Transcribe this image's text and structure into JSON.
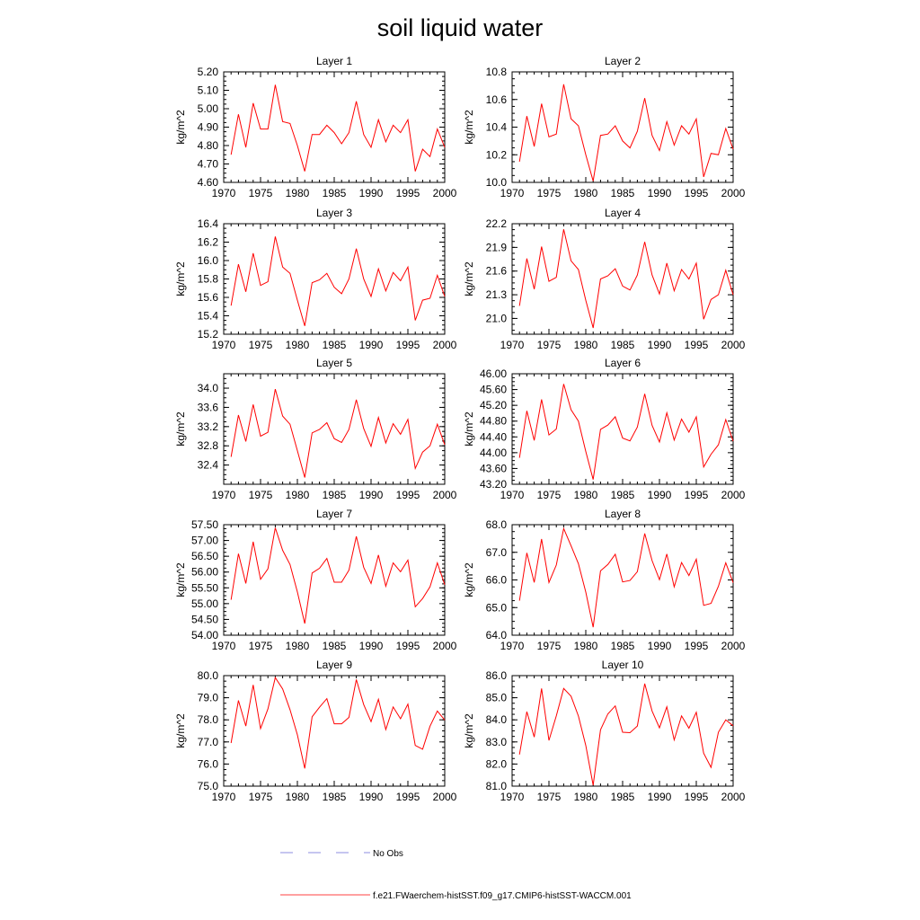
{
  "title": "soil liquid water",
  "chart_data": [
    {
      "type": "line",
      "title": "Layer 1",
      "ylabel": "kg/m^2",
      "xlim": [
        1970,
        2000
      ],
      "ylim": [
        4.6,
        5.2
      ],
      "xticks": [
        1970,
        1975,
        1980,
        1985,
        1990,
        1995,
        2000
      ],
      "yticks": [
        "4.60",
        "4.70",
        "4.80",
        "4.90",
        "5.00",
        "5.10",
        "5.20"
      ],
      "series": [
        {
          "color": "#ff0000",
          "x": [
            1971,
            1972,
            1973,
            1974,
            1975,
            1976,
            1977,
            1978,
            1979,
            1980,
            1981,
            1982,
            1983,
            1984,
            1985,
            1986,
            1987,
            1988,
            1989,
            1990,
            1991,
            1992,
            1993,
            1994,
            1995,
            1996,
            1997,
            1998,
            1999,
            2000
          ],
          "values": [
            4.75,
            4.97,
            4.79,
            5.03,
            4.89,
            4.89,
            5.13,
            4.93,
            4.92,
            4.8,
            4.66,
            4.86,
            4.86,
            4.91,
            4.87,
            4.81,
            4.87,
            5.04,
            4.86,
            4.79,
            4.94,
            4.82,
            4.91,
            4.87,
            4.94,
            4.66,
            4.78,
            4.74,
            4.89,
            4.79
          ]
        }
      ]
    },
    {
      "type": "line",
      "title": "Layer 2",
      "ylabel": "kg/m^2",
      "xlim": [
        1970,
        2000
      ],
      "ylim": [
        10.0,
        10.8
      ],
      "xticks": [
        1970,
        1975,
        1980,
        1985,
        1990,
        1995,
        2000
      ],
      "yticks": [
        "10.0",
        "10.2",
        "10.4",
        "10.6",
        "10.8"
      ],
      "series": [
        {
          "color": "#ff0000",
          "x": [
            1971,
            1972,
            1973,
            1974,
            1975,
            1976,
            1977,
            1978,
            1979,
            1980,
            1981,
            1982,
            1983,
            1984,
            1985,
            1986,
            1987,
            1988,
            1989,
            1990,
            1991,
            1992,
            1993,
            1994,
            1995,
            1996,
            1997,
            1998,
            1999,
            2000
          ],
          "values": [
            10.15,
            10.48,
            10.26,
            10.57,
            10.33,
            10.35,
            10.71,
            10.46,
            10.41,
            10.2,
            10.01,
            10.34,
            10.35,
            10.41,
            10.3,
            10.25,
            10.37,
            10.61,
            10.34,
            10.23,
            10.44,
            10.27,
            10.41,
            10.35,
            10.46,
            10.04,
            10.21,
            10.2,
            10.39,
            10.24
          ]
        }
      ]
    },
    {
      "type": "line",
      "title": "Layer 3",
      "ylabel": "kg/m^2",
      "xlim": [
        1970,
        2000
      ],
      "ylim": [
        15.2,
        16.4
      ],
      "xticks": [
        1970,
        1975,
        1980,
        1985,
        1990,
        1995,
        2000
      ],
      "yticks": [
        "15.2",
        "15.4",
        "15.6",
        "15.8",
        "16.0",
        "16.2",
        "16.4"
      ],
      "series": [
        {
          "color": "#ff0000",
          "x": [
            1971,
            1972,
            1973,
            1974,
            1975,
            1976,
            1977,
            1978,
            1979,
            1980,
            1981,
            1982,
            1983,
            1984,
            1985,
            1986,
            1987,
            1988,
            1989,
            1990,
            1991,
            1992,
            1993,
            1994,
            1995,
            1996,
            1997,
            1998,
            1999,
            2000
          ],
          "values": [
            15.51,
            15.96,
            15.66,
            16.08,
            15.73,
            15.77,
            16.26,
            15.93,
            15.86,
            15.57,
            15.29,
            15.76,
            15.79,
            15.86,
            15.71,
            15.64,
            15.8,
            16.13,
            15.8,
            15.61,
            15.91,
            15.67,
            15.87,
            15.78,
            15.93,
            15.35,
            15.57,
            15.59,
            15.84,
            15.61
          ]
        }
      ]
    },
    {
      "type": "line",
      "title": "Layer 4",
      "ylabel": "kg/m^2",
      "xlim": [
        1970,
        2000
      ],
      "ylim": [
        20.8,
        22.2
      ],
      "xticks": [
        1970,
        1975,
        1980,
        1985,
        1990,
        1995,
        2000
      ],
      "yticks": [
        "21.0",
        "21.3",
        "21.6",
        "21.9",
        "22.2"
      ],
      "series": [
        {
          "color": "#ff0000",
          "x": [
            1971,
            1972,
            1973,
            1974,
            1975,
            1976,
            1977,
            1978,
            1979,
            1980,
            1981,
            1982,
            1983,
            1984,
            1985,
            1986,
            1987,
            1988,
            1989,
            1990,
            1991,
            1992,
            1993,
            1994,
            1995,
            1996,
            1997,
            1998,
            1999,
            2000
          ],
          "values": [
            21.16,
            21.76,
            21.37,
            21.91,
            21.47,
            21.52,
            22.13,
            21.73,
            21.62,
            21.23,
            20.88,
            21.5,
            21.54,
            21.63,
            21.41,
            21.36,
            21.55,
            21.97,
            21.55,
            21.31,
            21.7,
            21.35,
            21.62,
            21.5,
            21.7,
            20.99,
            21.24,
            21.3,
            21.61,
            21.3
          ]
        }
      ]
    },
    {
      "type": "line",
      "title": "Layer 5",
      "ylabel": "kg/m^2",
      "xlim": [
        1970,
        2000
      ],
      "ylim": [
        32.0,
        34.3
      ],
      "xticks": [
        1970,
        1975,
        1980,
        1985,
        1990,
        1995,
        2000
      ],
      "yticks": [
        "32.4",
        "32.8",
        "33.2",
        "33.6",
        "34.0"
      ],
      "series": [
        {
          "color": "#ff0000",
          "x": [
            1971,
            1972,
            1973,
            1974,
            1975,
            1976,
            1977,
            1978,
            1979,
            1980,
            1981,
            1982,
            1983,
            1984,
            1985,
            1986,
            1987,
            1988,
            1989,
            1990,
            1991,
            1992,
            1993,
            1994,
            1995,
            1996,
            1997,
            1998,
            1999,
            2000
          ],
          "values": [
            32.57,
            33.44,
            32.89,
            33.66,
            33.0,
            33.08,
            33.98,
            33.42,
            33.25,
            32.7,
            32.14,
            33.07,
            33.14,
            33.28,
            32.95,
            32.87,
            33.14,
            33.76,
            33.16,
            32.79,
            33.39,
            32.86,
            33.26,
            33.04,
            33.35,
            32.33,
            32.67,
            32.8,
            33.25,
            32.82
          ]
        }
      ]
    },
    {
      "type": "line",
      "title": "Layer 6",
      "ylabel": "kg/m^2",
      "xlim": [
        1970,
        2000
      ],
      "ylim": [
        43.2,
        46.0
      ],
      "xticks": [
        1970,
        1975,
        1980,
        1985,
        1990,
        1995,
        2000
      ],
      "yticks": [
        "43.20",
        "43.60",
        "44.00",
        "44.40",
        "44.80",
        "45.20",
        "45.60",
        "46.00"
      ],
      "series": [
        {
          "color": "#ff0000",
          "x": [
            1971,
            1972,
            1973,
            1974,
            1975,
            1976,
            1977,
            1978,
            1979,
            1980,
            1981,
            1982,
            1983,
            1984,
            1985,
            1986,
            1987,
            1988,
            1989,
            1990,
            1991,
            1992,
            1993,
            1994,
            1995,
            1996,
            1997,
            1998,
            1999,
            2000
          ],
          "values": [
            43.87,
            45.06,
            44.31,
            45.35,
            44.45,
            44.6,
            45.74,
            45.09,
            44.8,
            44.03,
            43.32,
            44.59,
            44.7,
            44.91,
            44.37,
            44.3,
            44.65,
            45.49,
            44.69,
            44.27,
            45.01,
            44.32,
            44.85,
            44.52,
            44.91,
            43.64,
            43.96,
            44.2,
            44.84,
            44.29
          ]
        }
      ]
    },
    {
      "type": "line",
      "title": "Layer 7",
      "ylabel": "kg/m^2",
      "xlim": [
        1970,
        2000
      ],
      "ylim": [
        54.0,
        57.5
      ],
      "xticks": [
        1970,
        1975,
        1980,
        1985,
        1990,
        1995,
        2000
      ],
      "yticks": [
        "54.00",
        "54.50",
        "55.00",
        "55.50",
        "56.00",
        "56.50",
        "57.00",
        "57.50"
      ],
      "series": [
        {
          "color": "#ff0000",
          "x": [
            1971,
            1972,
            1973,
            1974,
            1975,
            1976,
            1977,
            1978,
            1979,
            1980,
            1981,
            1982,
            1983,
            1984,
            1985,
            1986,
            1987,
            1988,
            1989,
            1990,
            1991,
            1992,
            1993,
            1994,
            1995,
            1996,
            1997,
            1998,
            1999,
            2000
          ],
          "values": [
            55.12,
            56.58,
            55.64,
            56.96,
            55.77,
            56.1,
            57.4,
            56.69,
            56.24,
            55.37,
            54.37,
            55.97,
            56.12,
            56.43,
            55.68,
            55.68,
            56.06,
            57.13,
            56.15,
            55.64,
            56.54,
            55.55,
            56.29,
            56.01,
            56.38,
            54.9,
            55.16,
            55.53,
            56.29,
            55.6
          ]
        }
      ]
    },
    {
      "type": "line",
      "title": "Layer 8",
      "ylabel": "kg/m^2",
      "xlim": [
        1970,
        2000
      ],
      "ylim": [
        64.0,
        68.0
      ],
      "xticks": [
        1970,
        1975,
        1980,
        1985,
        1990,
        1995,
        2000
      ],
      "yticks": [
        "64.0",
        "65.0",
        "66.0",
        "67.0",
        "68.0"
      ],
      "series": [
        {
          "color": "#ff0000",
          "x": [
            1971,
            1972,
            1973,
            1974,
            1975,
            1976,
            1977,
            1978,
            1979,
            1980,
            1981,
            1982,
            1983,
            1984,
            1985,
            1986,
            1987,
            1988,
            1989,
            1990,
            1991,
            1992,
            1993,
            1994,
            1995,
            1996,
            1997,
            1998,
            1999,
            2000
          ],
          "values": [
            65.25,
            66.98,
            65.91,
            67.48,
            65.91,
            66.54,
            67.86,
            67.24,
            66.59,
            65.56,
            64.29,
            66.33,
            66.56,
            66.93,
            65.93,
            65.98,
            66.3,
            67.68,
            66.7,
            66.01,
            66.94,
            65.75,
            66.63,
            66.16,
            66.75,
            65.08,
            65.15,
            65.77,
            66.62,
            65.9
          ]
        }
      ]
    },
    {
      "type": "line",
      "title": "Layer 9",
      "ylabel": "kg/m^2",
      "xlim": [
        1970,
        2000
      ],
      "ylim": [
        75.0,
        80.0
      ],
      "xticks": [
        1970,
        1975,
        1980,
        1985,
        1990,
        1995,
        2000
      ],
      "yticks": [
        "75.0",
        "76.0",
        "77.0",
        "78.0",
        "79.0",
        "80.0"
      ],
      "series": [
        {
          "color": "#ff0000",
          "x": [
            1971,
            1972,
            1973,
            1974,
            1975,
            1976,
            1977,
            1978,
            1979,
            1980,
            1981,
            1982,
            1983,
            1984,
            1985,
            1986,
            1987,
            1988,
            1989,
            1990,
            1991,
            1992,
            1993,
            1994,
            1995,
            1996,
            1997,
            1998,
            1999,
            2000
          ],
          "values": [
            76.95,
            78.88,
            77.72,
            79.58,
            77.6,
            78.49,
            79.91,
            79.4,
            78.46,
            77.32,
            75.8,
            78.14,
            78.57,
            78.96,
            77.82,
            77.82,
            78.11,
            79.82,
            78.69,
            77.92,
            78.93,
            77.56,
            78.58,
            78.05,
            78.71,
            76.84,
            76.67,
            77.71,
            78.4,
            77.99
          ]
        }
      ]
    },
    {
      "type": "line",
      "title": "Layer 10",
      "ylabel": "kg/m^2",
      "xlim": [
        1970,
        2000
      ],
      "ylim": [
        81.0,
        86.0
      ],
      "xticks": [
        1970,
        1975,
        1980,
        1985,
        1990,
        1995,
        2000
      ],
      "yticks": [
        "81.0",
        "82.0",
        "83.0",
        "84.0",
        "85.0",
        "86.0"
      ],
      "series": [
        {
          "color": "#ff0000",
          "x": [
            1971,
            1972,
            1973,
            1974,
            1975,
            1976,
            1977,
            1978,
            1979,
            1980,
            1981,
            1982,
            1983,
            1984,
            1985,
            1986,
            1987,
            1988,
            1989,
            1990,
            1991,
            1992,
            1993,
            1994,
            1995,
            1996,
            1997,
            1998,
            1999,
            2000
          ],
          "values": [
            82.43,
            84.37,
            83.22,
            85.42,
            83.07,
            84.18,
            85.42,
            85.07,
            84.17,
            82.84,
            81.04,
            83.55,
            84.27,
            84.63,
            83.44,
            83.42,
            83.72,
            85.64,
            84.4,
            83.64,
            84.59,
            83.09,
            84.18,
            83.62,
            84.34,
            82.49,
            81.85,
            83.44,
            84.0,
            83.73
          ]
        }
      ]
    }
  ],
  "legend": [
    {
      "label": "No Obs",
      "color": "#6a6ad8",
      "dash": "dashed"
    },
    {
      "label": "f.e21.FWaerchem-histSST.f09_g17.CMIP6-histSST-WACCM.001",
      "color": "#ff0000",
      "dash": "solid"
    }
  ]
}
